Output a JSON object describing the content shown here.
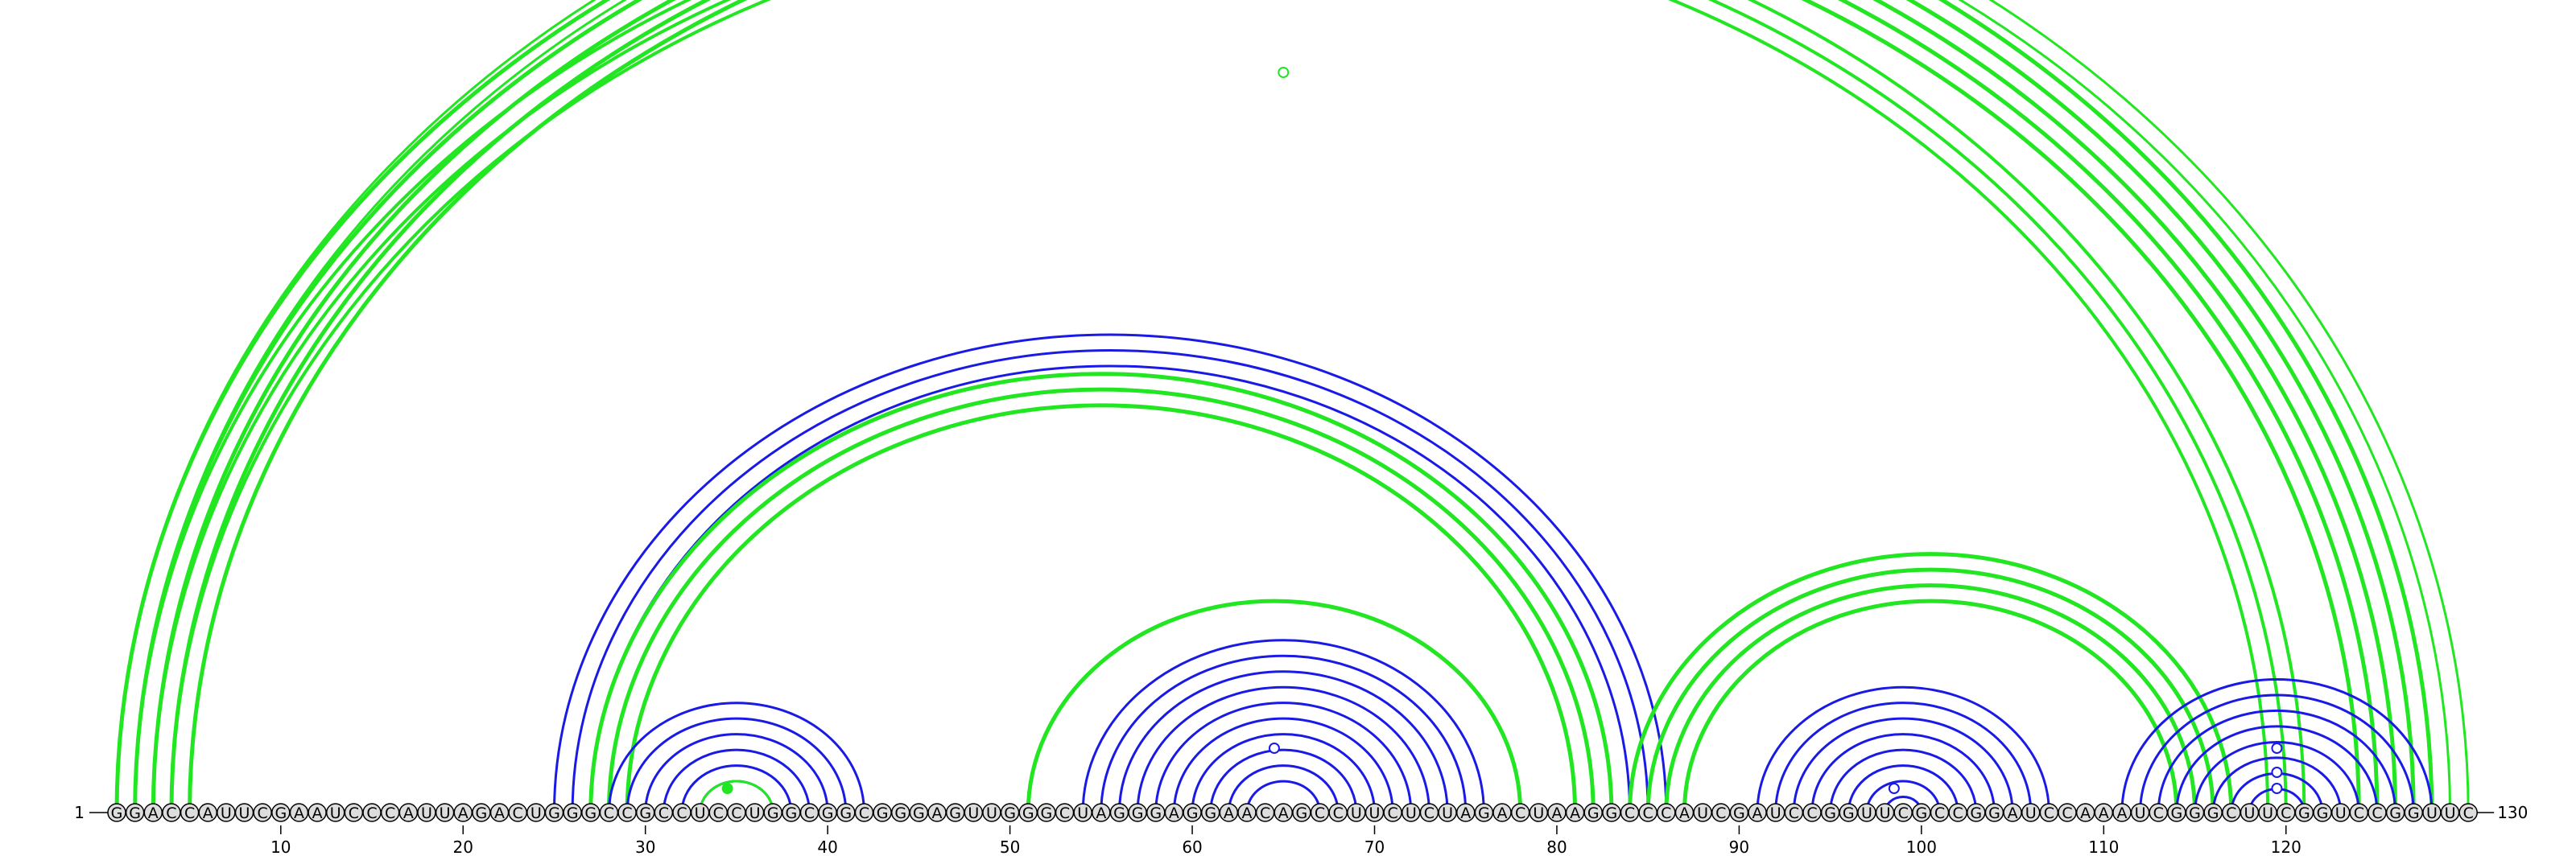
{
  "sequence": "GGACCAUUCGAAUCCCAUUAGACUGGGCCGCCUCCUGGCGGCGGGAGUUGGGCUAGGGAGGAACAGCCUUCUCUAGACUAAGGCCCAUCGAUCCGGUUCGCCGGAUCCAAAUCGGGCUUCGGUCCGGUUC",
  "start_label": "1",
  "end_label": "130",
  "ticks": [
    10,
    20,
    30,
    40,
    50,
    60,
    70,
    80,
    90,
    100,
    110,
    120
  ],
  "colors": {
    "green": "#22e622",
    "blue": "#1a1ae6",
    "nucleotide_fill": "#dddddd",
    "stroke": "#000000"
  },
  "helices": [
    {
      "color": "green",
      "width": 5,
      "pairs": [
        [
          1,
          128
        ],
        [
          2,
          127
        ],
        [
          3,
          126
        ],
        [
          4,
          125
        ],
        [
          5,
          124
        ]
      ]
    },
    {
      "color": "green",
      "width": 4,
      "pairs": [
        [
          2,
          121
        ],
        [
          3,
          120
        ],
        [
          4,
          119
        ]
      ]
    },
    {
      "color": "green",
      "width": 3,
      "pairs": [
        [
          1,
          130
        ],
        [
          2,
          129
        ]
      ]
    },
    {
      "color": "blue",
      "width": 3,
      "pairs": [
        [
          25,
          86
        ],
        [
          26,
          85
        ],
        [
          27,
          84
        ]
      ]
    },
    {
      "color": "green",
      "width": 5,
      "pairs": [
        [
          27,
          83
        ],
        [
          28,
          82
        ],
        [
          29,
          81
        ]
      ]
    },
    {
      "color": "blue",
      "width": 3,
      "pairs": [
        [
          28,
          42
        ],
        [
          29,
          41
        ],
        [
          30,
          40
        ],
        [
          31,
          39
        ],
        [
          32,
          38
        ],
        [
          33,
          37
        ]
      ]
    },
    {
      "color": "green",
      "width": 3,
      "pairs": [
        [
          33,
          37
        ]
      ]
    },
    {
      "color": "green",
      "width": 5,
      "pairs": [
        [
          51,
          78
        ]
      ]
    },
    {
      "color": "blue",
      "width": 3,
      "pairs": [
        [
          54,
          76
        ],
        [
          55,
          75
        ],
        [
          56,
          74
        ],
        [
          57,
          73
        ],
        [
          58,
          72
        ],
        [
          59,
          71
        ],
        [
          60,
          70
        ],
        [
          61,
          69
        ],
        [
          62,
          68
        ],
        [
          63,
          67
        ]
      ]
    },
    {
      "color": "green",
      "width": 5,
      "pairs": [
        [
          84,
          117
        ],
        [
          85,
          116
        ],
        [
          86,
          115
        ],
        [
          87,
          114
        ]
      ]
    },
    {
      "color": "blue",
      "width": 3,
      "pairs": [
        [
          91,
          107
        ],
        [
          92,
          106
        ],
        [
          93,
          105
        ],
        [
          94,
          104
        ],
        [
          95,
          103
        ],
        [
          96,
          102
        ],
        [
          97,
          101
        ],
        [
          98,
          100
        ]
      ]
    },
    {
      "color": "blue",
      "width": 3,
      "pairs": [
        [
          111,
          128
        ],
        [
          112,
          127
        ],
        [
          113,
          126
        ],
        [
          114,
          125
        ],
        [
          115,
          124
        ],
        [
          116,
          123
        ],
        [
          117,
          122
        ],
        [
          118,
          121
        ]
      ]
    }
  ],
  "markers": [
    {
      "position": 65,
      "height": 0.92,
      "color": "green",
      "filled": false
    },
    {
      "position": 34.5,
      "height": 0.03,
      "color": "green",
      "filled": true
    },
    {
      "position": 64.5,
      "height": 0.08,
      "color": "blue",
      "filled": false
    },
    {
      "position": 98.5,
      "height": 0.03,
      "color": "blue",
      "filled": false
    },
    {
      "position": 119.5,
      "height": 0.08,
      "color": "blue",
      "filled": false
    },
    {
      "position": 119.5,
      "height": 0.05,
      "color": "blue",
      "filled": false
    },
    {
      "position": 119.5,
      "height": 0.03,
      "color": "blue",
      "filled": false
    }
  ]
}
